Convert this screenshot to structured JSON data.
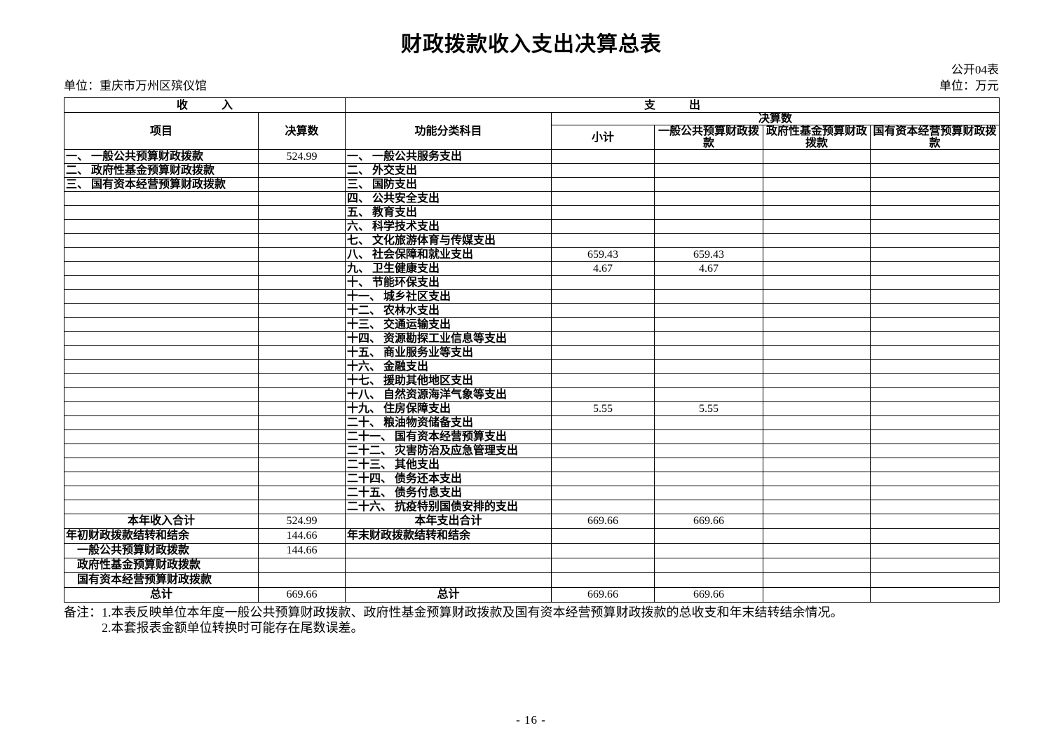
{
  "page": {
    "title": "财政拨款收入支出决算总表",
    "doc_label": "公开04表",
    "unit_name": "单位：重庆市万州区殡仪馆",
    "unit_measure": "单位：万元",
    "page_number": "- 16 -"
  },
  "table": {
    "header": {
      "income_title": "收　　　入",
      "expense_title": "支　　　出",
      "item": "项目",
      "amount": "决算数",
      "functional_subject": "功能分类科目",
      "amount_group": "决算数",
      "subtotal": "小计",
      "general_public_budget": "一般公共预算财政拨款",
      "gov_fund_budget": "政府性基金预算财政拨款",
      "state_capital_budget": "国有资本经营预算财政拨款"
    },
    "body_rows": [
      {
        "income": "一、 一般公共预算财政拨款",
        "income_amt": "524.99",
        "expense": "一、 一般公共服务支出"
      },
      {
        "income": "二、 政府性基金预算财政拨款",
        "expense": "二、 外交支出"
      },
      {
        "income": "三、 国有资本经营预算财政拨款",
        "expense": "三、 国防支出"
      },
      {
        "expense": "四、 公共安全支出"
      },
      {
        "expense": "五、 教育支出"
      },
      {
        "expense": "六、 科学技术支出"
      },
      {
        "expense": "七、 文化旅游体育与传媒支出"
      },
      {
        "expense": "八、 社会保障和就业支出",
        "subtotal": "659.43",
        "general": "659.43"
      },
      {
        "expense": "九、 卫生健康支出",
        "subtotal": "4.67",
        "general": "4.67"
      },
      {
        "expense": "十、 节能环保支出"
      },
      {
        "expense": "十一、 城乡社区支出"
      },
      {
        "expense": "十二、 农林水支出"
      },
      {
        "expense": "十三、 交通运输支出"
      },
      {
        "expense": "十四、 资源勘探工业信息等支出"
      },
      {
        "expense": "十五、 商业服务业等支出"
      },
      {
        "expense": "十六、 金融支出"
      },
      {
        "expense": "十七、 援助其他地区支出"
      },
      {
        "expense": "十八、 自然资源海洋气象等支出"
      },
      {
        "expense": "十九、 住房保障支出",
        "subtotal": "5.55",
        "general": "5.55"
      },
      {
        "expense": "二十、 粮油物资储备支出"
      },
      {
        "expense": "二十一、 国有资本经营预算支出"
      },
      {
        "expense": "二十二、 灾害防治及应急管理支出"
      },
      {
        "expense": "二十三、 其他支出"
      },
      {
        "expense": "二十四、 债务还本支出"
      },
      {
        "expense": "二十五、 债务付息支出"
      },
      {
        "expense": "二十六、 抗疫特别国债安排的支出"
      }
    ],
    "summary_rows": [
      {
        "income": "本年收入合计",
        "income_amt": "524.99",
        "expense": "本年支出合计",
        "subtotal": "669.66",
        "general": "669.66",
        "align": "center"
      },
      {
        "income": "年初财政拨款结转和结余",
        "income_amt": "144.66",
        "expense": "年末财政拨款结转和结余",
        "align": "left"
      },
      {
        "income": "　一般公共预算财政拨款",
        "income_amt": "144.66",
        "align": "left"
      },
      {
        "income": "　政府性基金预算财政拨款",
        "align": "left"
      },
      {
        "income": "　国有资本经营预算财政拨款",
        "align": "left"
      },
      {
        "income": "总计",
        "income_amt": "669.66",
        "expense": "总计",
        "subtotal": "669.66",
        "general": "669.66",
        "align": "center"
      }
    ]
  },
  "notes": {
    "line1": "备注：1.本表反映单位本年度一般公共预算财政拨款、政府性基金预算财政拨款及国有资本经营预算财政拨款的总收支和年末结转结余情况。",
    "line2": "2.本套报表金额单位转换时可能存在尾数误差。"
  }
}
